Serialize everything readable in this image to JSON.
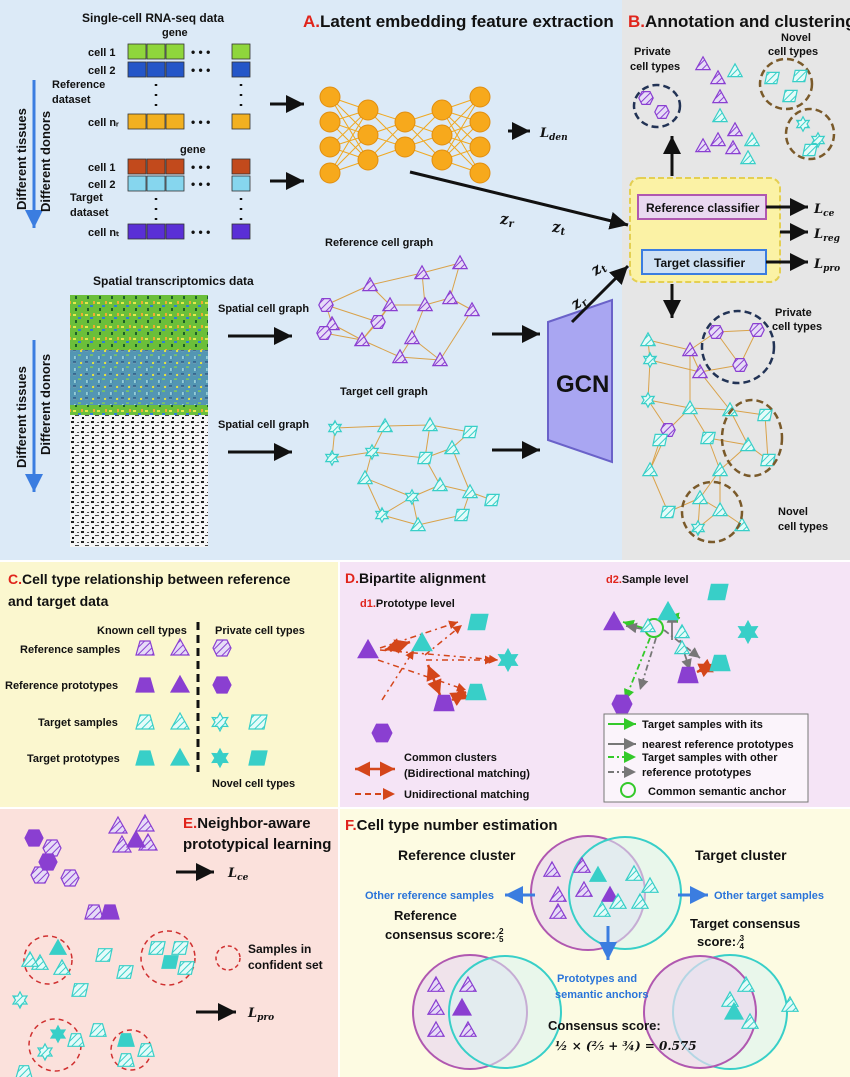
{
  "panel_a": {
    "letter": "A.",
    "title": "Latent embedding feature extraction",
    "scrna_title": "Single-cell RNA-seq data",
    "gene_label": "gene",
    "reference_dataset_1": "Reference",
    "reference_dataset_2": "dataset",
    "target_dataset_1": "Target",
    "target_dataset_2": "dataset",
    "ref_rows": [
      "cell 1",
      "cell 2",
      "cell nᵣ"
    ],
    "tgt_rows": [
      "cell 1",
      "cell 2",
      "cell nₜ"
    ],
    "side_tissues": "Different tissues",
    "side_donors": "Different donors",
    "spatial_title": "Spatial transcriptomics data",
    "spatial_cell_graph": "Spatial cell graph",
    "reference_cell_graph": "Reference cell graph",
    "target_cell_graph": "Target cell graph",
    "gcn": "GCN"
  },
  "latent": {
    "zr_main": "z",
    "zr_sub": "r",
    "zt_main": "z",
    "zt_sub": "t"
  },
  "losses": {
    "den_main": "L",
    "den_sub": "den",
    "ce_main": "L",
    "ce_sub": "ce",
    "reg_main": "L",
    "reg_sub": "reg",
    "pro_main": "L",
    "pro_sub": "pro"
  },
  "panel_b": {
    "letter": "B.",
    "title": "Annotation and clustering",
    "private_1": "Private",
    "private_2": "cell types",
    "novel_1": "Novel",
    "novel_2": "cell types",
    "reference_classifier": "Reference classifier",
    "target_classifier": "Target classifier"
  },
  "panel_c": {
    "letter": "C.",
    "title_1": "Cell type relationship between reference",
    "title_2": "and target data",
    "known_header": "Known cell types",
    "private_header": "Private cell types",
    "rows": [
      "Reference samples",
      "Reference prototypes",
      "Target samples",
      "Target prototypes"
    ],
    "novel_footer": "Novel cell types"
  },
  "panel_d": {
    "letter": "D.",
    "title": "Bipartite alignment",
    "d1_id": "d1.",
    "d1_title": "Prototype level",
    "d2_id": "d2.",
    "d2_title": "Sample level",
    "common_1": "Common clusters",
    "common_2": "(Bidirectional matching)",
    "unidirectional": "Unidirectional matching",
    "d2_legend": [
      "Target samples with its",
      "nearest reference prototypes",
      "Target samples with other",
      "reference prototypes",
      "Common semantic anchor"
    ]
  },
  "panel_e": {
    "letter": "E.",
    "title_1": "Neighbor-aware",
    "title_2": "prototypical learning",
    "samples_in_1": "Samples in",
    "samples_in_2": "confident set"
  },
  "panel_f": {
    "letter": "F.",
    "title": "Cell type number estimation",
    "reference_cluster": "Reference cluster",
    "target_cluster": "Target cluster",
    "other_reference": "Other reference samples",
    "other_target": "Other target samples",
    "ref_consensus_1": "Reference",
    "ref_consensus_2": "consensus score: ",
    "ref_score_num": "2",
    "ref_score_den": "5",
    "tgt_consensus_1": "Target consensus",
    "tgt_consensus_2": "score: ",
    "tgt_score_num": "3",
    "tgt_score_den": "4",
    "prototypes_1": "Prototypes and",
    "prototypes_2": "semantic anchors",
    "consensus_title": "Consensus score:",
    "formula": "½ × (⅖ + ¾) = 0.575"
  },
  "colors": {
    "reference_purple": "#8a3fd1",
    "target_cyan": "#38cfc8",
    "accent_red": "#e0241b",
    "accent_blue": "#3b7de0"
  }
}
